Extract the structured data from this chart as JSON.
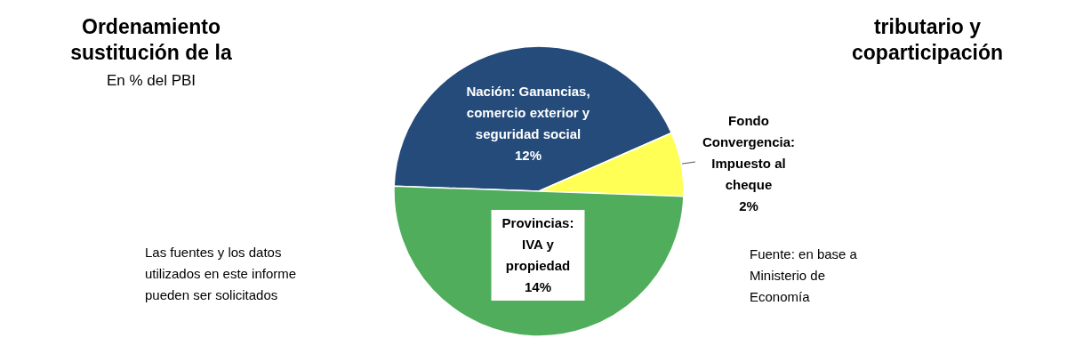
{
  "chart_data": {
    "type": "pie",
    "title": "Ordenamiento tributario y sustitución de la coparticipación",
    "subtitle": "En % del PBI",
    "categories": [
      "Nación: Ganancias, comercio exterior y seguridad social",
      "Fondo Convergencia: Impuesto al cheque",
      "Provincias: IVA y propiedad"
    ],
    "values": [
      12,
      2,
      14
    ],
    "colors": [
      "#244b7a",
      "#ffff55",
      "#4fad5b"
    ],
    "value_labels": [
      "12%",
      "2%",
      "14%"
    ],
    "annotations": [
      "Las fuentes y los datos utilizados en este informe pueden ser solicitados",
      "Fuente: en base a Ministerio de Economía"
    ]
  }
}
